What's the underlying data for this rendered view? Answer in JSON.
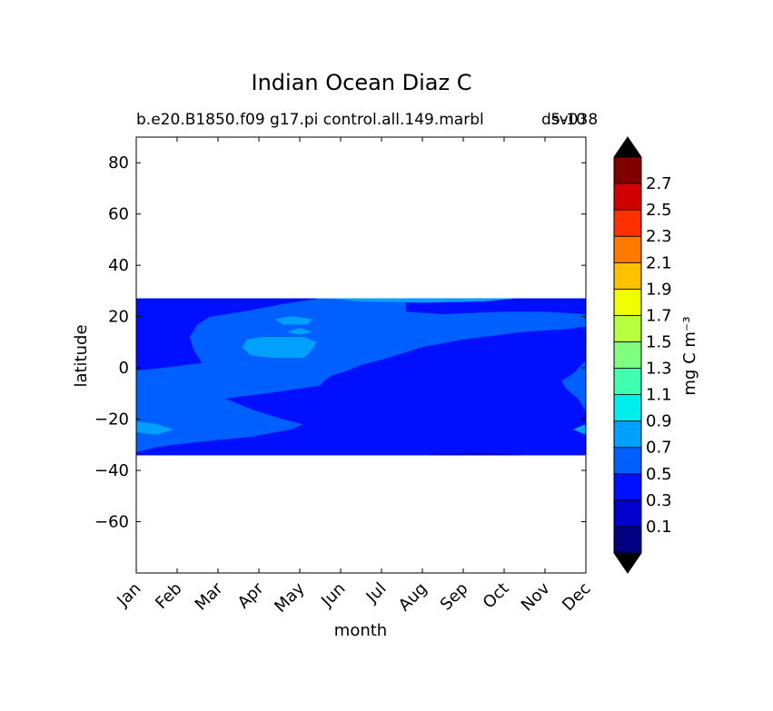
{
  "chart_data": {
    "type": "heatmap",
    "title": "Indian Ocean Diaz C",
    "subtitle_left": "b.e20.B1850.f09 g17.pi control.all.149.marbl",
    "subtitle_right": "5-10",
    "subtitle_overlap": "dsv038",
    "xlabel": "month",
    "ylabel": "latitude",
    "x_categories": [
      "Jan",
      "Feb",
      "Mar",
      "Apr",
      "May",
      "Jun",
      "Jul",
      "Aug",
      "Sep",
      "Oct",
      "Nov",
      "Dec"
    ],
    "xlim": [
      0,
      11
    ],
    "ylim": [
      -80,
      90
    ],
    "y_ticks": [
      80,
      60,
      40,
      20,
      0,
      -20,
      -40,
      -60
    ],
    "y_tick_labels": [
      "80",
      "60",
      "40",
      "20",
      "0",
      "−20",
      "−40",
      "−60"
    ],
    "data_lat_range": [
      -34,
      27
    ],
    "colorbar": {
      "label": "mg C m⁻³",
      "levels": [
        0,
        0.1,
        0.2,
        0.3,
        0.4,
        0.5,
        0.6,
        0.7,
        0.8,
        0.9,
        1.0,
        1.1,
        1.2,
        1.3,
        1.4,
        1.5,
        1.6,
        1.7,
        1.8,
        1.9,
        2.0,
        2.1,
        2.2,
        2.3,
        2.4,
        2.5,
        2.6,
        2.7,
        2.8
      ],
      "tick_labels": [
        "0.1",
        "0.3",
        "0.5",
        "0.7",
        "0.9",
        "1.1",
        "1.3",
        "1.5",
        "1.7",
        "1.9",
        "2.1",
        "2.3",
        "2.5",
        "2.7"
      ],
      "colors": [
        "#000080",
        "#0000cd",
        "#0010ff",
        "#0060ff",
        "#00a0ff",
        "#00eeee",
        "#40ffb0",
        "#80ff80",
        "#b8ff40",
        "#f0ff00",
        "#ffc000",
        "#ff7800",
        "#ff3000",
        "#d00000",
        "#800000"
      ],
      "extend": "both",
      "extend_colors": [
        "#000000",
        "#000000"
      ]
    },
    "regions": [
      {
        "color_index": 3,
        "value_range": [
          0.4,
          0.5
        ],
        "points": [
          [
            0,
            27
          ],
          [
            11,
            27
          ],
          [
            11,
            -34
          ],
          [
            0,
            -34
          ]
        ]
      },
      {
        "color_index": 2,
        "value_range": [
          0.3,
          0.4
        ],
        "points": [
          [
            0,
            -33
          ],
          [
            0.5,
            -31
          ],
          [
            1.5,
            -29
          ],
          [
            2.8,
            -27
          ],
          [
            3.8,
            -24
          ],
          [
            4.1,
            -22
          ],
          [
            3.6,
            -20
          ],
          [
            2.8,
            -16
          ],
          [
            2.2,
            -12
          ],
          [
            3.2,
            -10
          ],
          [
            4.5,
            -7
          ],
          [
            4.6,
            -5
          ],
          [
            4.8,
            -3
          ],
          [
            5.2,
            -1
          ],
          [
            5.5,
            1
          ],
          [
            6.2,
            4
          ],
          [
            7,
            8
          ],
          [
            8,
            11
          ],
          [
            9.5,
            14
          ],
          [
            10.5,
            15
          ],
          [
            11,
            16
          ],
          [
            11,
            3
          ],
          [
            10.7,
            -2
          ],
          [
            10.4,
            -5
          ],
          [
            10.5,
            -8
          ],
          [
            10.8,
            -12
          ],
          [
            11,
            -17
          ],
          [
            11,
            -34
          ],
          [
            0,
            -34
          ]
        ]
      },
      {
        "color_index": 2,
        "value_range": [
          0.3,
          0.4
        ],
        "points": [
          [
            0,
            27
          ],
          [
            4.4,
            27
          ],
          [
            3.6,
            25
          ],
          [
            2.6,
            22
          ],
          [
            1.8,
            20
          ],
          [
            1.5,
            17
          ],
          [
            1.3,
            12
          ],
          [
            1.4,
            7
          ],
          [
            1.6,
            2
          ],
          [
            0.6,
            0
          ],
          [
            0,
            -1
          ]
        ]
      },
      {
        "color_index": 2,
        "value_range": [
          0.3,
          0.4
        ],
        "points": [
          [
            6.6,
            22
          ],
          [
            7.5,
            21
          ],
          [
            9,
            22
          ],
          [
            10,
            22
          ],
          [
            11,
            21
          ],
          [
            11,
            27
          ],
          [
            6.6,
            27
          ]
        ]
      },
      {
        "color_index": 4,
        "value_range": [
          0.6,
          0.7
        ],
        "points": [
          [
            2.7,
            11
          ],
          [
            3.1,
            12
          ],
          [
            4.1,
            12
          ],
          [
            4.4,
            10
          ],
          [
            4.3,
            7
          ],
          [
            4.1,
            4
          ],
          [
            3.3,
            4
          ],
          [
            2.8,
            5
          ],
          [
            2.6,
            8
          ]
        ]
      },
      {
        "color_index": 4,
        "value_range": [
          0.6,
          0.7
        ],
        "points": [
          [
            3.7,
            14
          ],
          [
            4,
            15.5
          ],
          [
            4.3,
            14
          ],
          [
            4,
            13
          ]
        ]
      },
      {
        "color_index": 4,
        "value_range": [
          0.6,
          0.7
        ],
        "points": [
          [
            3.4,
            19
          ],
          [
            3.8,
            20
          ],
          [
            4.3,
            19
          ],
          [
            4.2,
            17
          ],
          [
            3.6,
            17
          ]
        ]
      },
      {
        "color_index": 4,
        "value_range": [
          0.6,
          0.7
        ],
        "points": [
          [
            4.8,
            27
          ],
          [
            9.2,
            27
          ],
          [
            8.5,
            26
          ],
          [
            7,
            25.5
          ],
          [
            5.5,
            26
          ]
        ]
      },
      {
        "color_index": 4,
        "value_range": [
          0.6,
          0.7
        ],
        "points": [
          [
            0,
            -21
          ],
          [
            0.5,
            -22
          ],
          [
            0.9,
            -24
          ],
          [
            0.5,
            -26
          ],
          [
            0,
            -25
          ]
        ]
      },
      {
        "color_index": 4,
        "value_range": [
          0.6,
          0.7
        ],
        "points": [
          [
            10.7,
            -24
          ],
          [
            11,
            -22
          ],
          [
            11,
            -26
          ]
        ]
      },
      {
        "color_index": 1,
        "value_range": [
          0.2,
          0.3
        ],
        "points": [
          [
            7.2,
            -34
          ],
          [
            9.4,
            -34
          ],
          [
            8.4,
            -33
          ]
        ]
      }
    ]
  }
}
